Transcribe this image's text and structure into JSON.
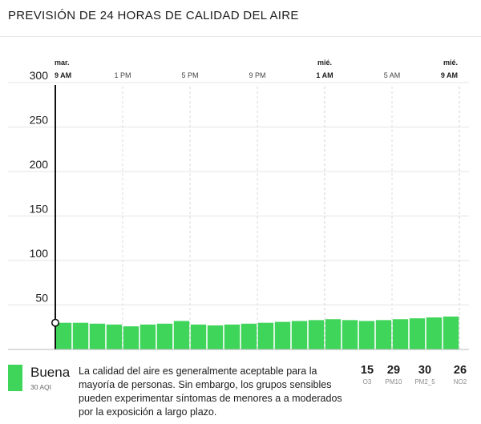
{
  "header": {
    "title": "PREVISIÓN DE 24 HORAS DE CALIDAD DEL AIRE"
  },
  "chart_data": {
    "type": "bar",
    "title": "",
    "xlabel": "",
    "ylabel": "",
    "ylim": [
      0,
      320
    ],
    "yticks": [
      50,
      100,
      150,
      200,
      250,
      300
    ],
    "grid": true,
    "current_point": 30,
    "x_ticks": [
      {
        "hour": 0,
        "day": "mar.",
        "time": "9 AM",
        "bold": true
      },
      {
        "hour": 4,
        "day": "",
        "time": "1 PM",
        "bold": false
      },
      {
        "hour": 8,
        "day": "",
        "time": "5 PM",
        "bold": false
      },
      {
        "hour": 12,
        "day": "",
        "time": "9 PM",
        "bold": false
      },
      {
        "hour": 16,
        "day": "mié.",
        "time": "1 AM",
        "bold": true
      },
      {
        "hour": 20,
        "day": "",
        "time": "5 AM",
        "bold": false
      },
      {
        "hour": 24,
        "day": "mié.",
        "time": "9 AM",
        "bold": true
      }
    ],
    "series": [
      {
        "values": [
          30,
          30,
          29,
          28,
          26,
          28,
          29,
          32,
          28,
          27,
          28,
          29,
          30,
          31,
          32,
          33,
          34,
          33,
          32,
          33,
          34,
          35,
          36,
          37
        ],
        "color": "#3fd45a"
      }
    ]
  },
  "footer": {
    "category": {
      "name": "Buena",
      "aqi": "30 AQI",
      "color": "#3fd45a"
    },
    "description": "La calidad del aire es generalmente aceptable para la mayoría de personas. Sin embargo, los grupos sensibles pueden experimentar síntomas de menores a a moderados por la exposición a largo plazo.",
    "pollutants": [
      {
        "value": "15",
        "name": "O3"
      },
      {
        "value": "29",
        "name": "PM10"
      },
      {
        "value": "30",
        "name": "PM2_5"
      },
      {
        "value": "26",
        "name": "NO2"
      }
    ]
  }
}
